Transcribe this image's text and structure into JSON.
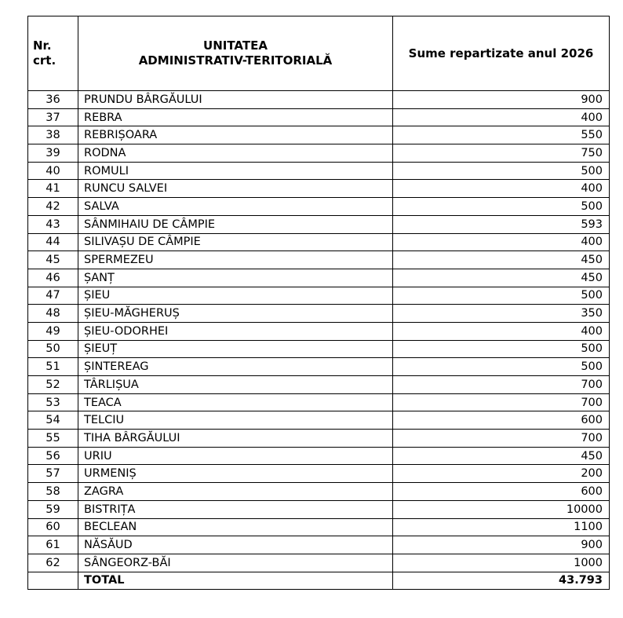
{
  "header": {
    "nr_line1": "Nr.",
    "nr_line2": "crt.",
    "unit_line1": "UNITATEA",
    "unit_line2": "ADMINISTRATIV-TERITORIALĂ",
    "sum": "Sume repartizate anul 2026"
  },
  "rows": [
    {
      "nr": "36",
      "name": "PRUNDU BÂRGĂULUI",
      "value": "900"
    },
    {
      "nr": "37",
      "name": "REBRA",
      "value": "400"
    },
    {
      "nr": "38",
      "name": "REBRIȘOARA",
      "value": "550"
    },
    {
      "nr": "39",
      "name": "RODNA",
      "value": "750"
    },
    {
      "nr": "40",
      "name": "ROMULI",
      "value": "500"
    },
    {
      "nr": "41",
      "name": "RUNCU SALVEI",
      "value": "400"
    },
    {
      "nr": "42",
      "name": "SALVA",
      "value": "500"
    },
    {
      "nr": "43",
      "name": "SÂNMIHAIU DE CÂMPIE",
      "value": "593"
    },
    {
      "nr": "44",
      "name": "SILIVAȘU DE CÂMPIE",
      "value": "400"
    },
    {
      "nr": "45",
      "name": "SPERMEZEU",
      "value": "450"
    },
    {
      "nr": "46",
      "name": "ȘANȚ",
      "value": "450"
    },
    {
      "nr": "47",
      "name": "ȘIEU",
      "value": "500"
    },
    {
      "nr": "48",
      "name": "ȘIEU-MĂGHERUȘ",
      "value": "350"
    },
    {
      "nr": "49",
      "name": "ȘIEU-ODORHEI",
      "value": "400"
    },
    {
      "nr": "50",
      "name": "ȘIEUȚ",
      "value": "500"
    },
    {
      "nr": "51",
      "name": "ȘINTEREAG",
      "value": "500"
    },
    {
      "nr": "52",
      "name": "TÂRLIȘUA",
      "value": "700"
    },
    {
      "nr": "53",
      "name": "TEACA",
      "value": "700"
    },
    {
      "nr": "54",
      "name": "TELCIU",
      "value": "600"
    },
    {
      "nr": "55",
      "name": "TIHA BÂRGĂULUI",
      "value": "700"
    },
    {
      "nr": "56",
      "name": "URIU",
      "value": "450"
    },
    {
      "nr": "57",
      "name": "URMENIȘ",
      "value": "200"
    },
    {
      "nr": "58",
      "name": "ZAGRA",
      "value": "600"
    },
    {
      "nr": "59",
      "name": "BISTRIȚA",
      "value": "10000"
    },
    {
      "nr": "60",
      "name": "BECLEAN",
      "value": "1100"
    },
    {
      "nr": "61",
      "name": "NĂSĂUD",
      "value": "900"
    },
    {
      "nr": "62",
      "name": "SÂNGEORZ-BĂI",
      "value": "1000"
    }
  ],
  "total": {
    "label": "TOTAL",
    "value": "43.793"
  }
}
